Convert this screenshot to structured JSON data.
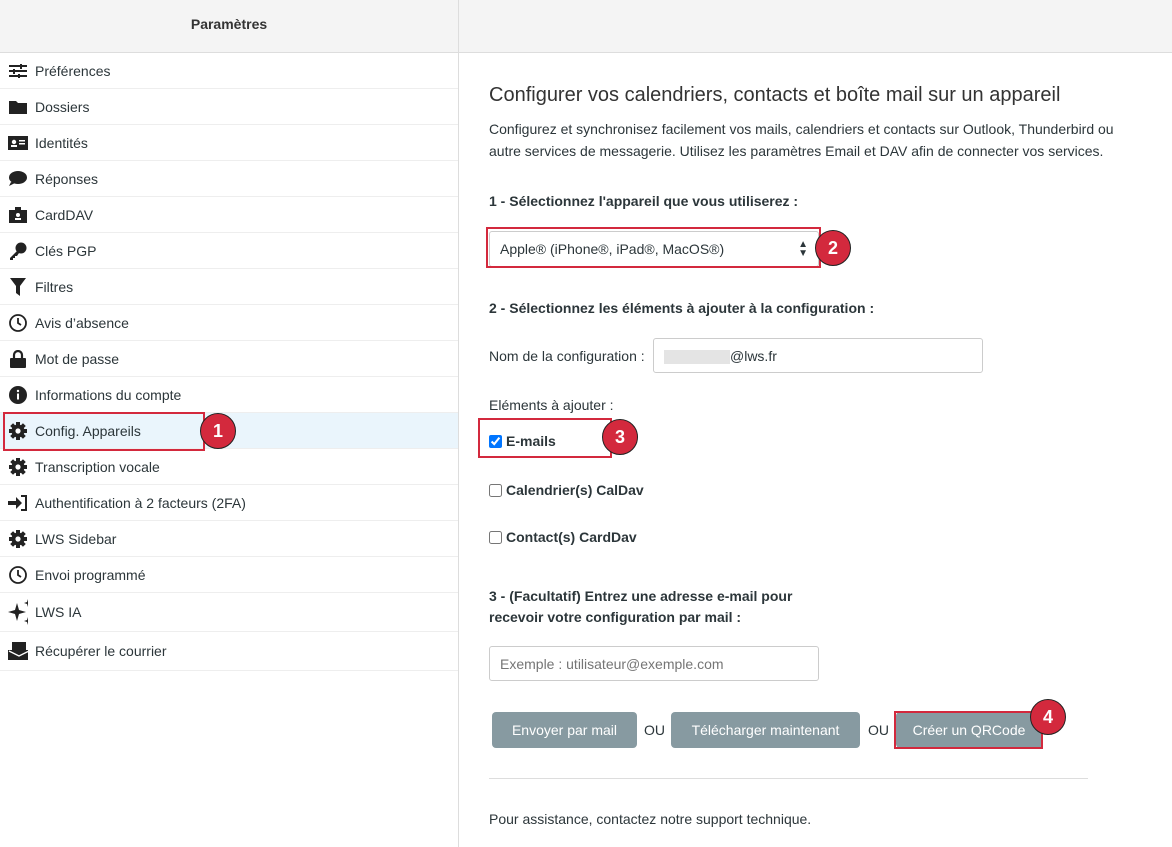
{
  "header": {
    "title": "Paramètres"
  },
  "sidebar": {
    "items": [
      {
        "label": "Préférences",
        "icon": "sliders-icon"
      },
      {
        "label": "Dossiers",
        "icon": "folder-icon"
      },
      {
        "label": "Identités",
        "icon": "id-card-icon"
      },
      {
        "label": "Réponses",
        "icon": "comment-icon"
      },
      {
        "label": "CardDAV",
        "icon": "contact-card-icon"
      },
      {
        "label": "Clés PGP",
        "icon": "key-icon"
      },
      {
        "label": "Filtres",
        "icon": "filter-icon"
      },
      {
        "label": "Avis d’absence",
        "icon": "clock-icon"
      },
      {
        "label": "Mot de passe",
        "icon": "lock-icon"
      },
      {
        "label": "Informations du compte",
        "icon": "info-icon"
      },
      {
        "label": "Config. Appareils",
        "icon": "gear-icon",
        "selected": true
      },
      {
        "label": "Transcription vocale",
        "icon": "gear-icon"
      },
      {
        "label": "Authentification à 2 facteurs (2FA)",
        "icon": "sign-in-icon"
      },
      {
        "label": "LWS Sidebar",
        "icon": "gear-icon"
      },
      {
        "label": "Envoi programmé",
        "icon": "clock-icon"
      },
      {
        "label": "LWS IA",
        "icon": "sparkles-icon"
      },
      {
        "label": "Récupérer le courrier",
        "icon": "mail-fetch-icon"
      }
    ]
  },
  "main": {
    "title": "Configurer vos calendriers, contacts et boîte mail sur un appareil",
    "description": "Configurez et synchronisez facilement vos mails, calendriers et contacts sur Outlook, Thunderbird ou autre services de messagerie. Utilisez les paramètres Email et DAV afin de connecter vos services.",
    "step1": "1 - Sélectionnez l'appareil que vous utiliserez :",
    "device_select": "Apple® (iPhone®, iPad®, MacOS®)",
    "step2": "2 - Sélectionnez les éléments à ajouter à la configuration :",
    "config_name_label": "Nom de la configuration :",
    "config_name_value": "@lws.fr",
    "elements_label": "Eléments à ajouter :",
    "checkboxes": [
      {
        "label": "E-mails",
        "checked": true
      },
      {
        "label": "Calendrier(s) CalDav",
        "checked": false
      },
      {
        "label": "Contact(s) CardDav",
        "checked": false
      }
    ],
    "step3": "3 - (Facultatif) Entrez une adresse e-mail pour recevoir votre configuration par mail :",
    "email_placeholder": "Exemple : utilisateur@exemple.com",
    "buttons": {
      "send": "Envoyer par mail",
      "download": "Télécharger maintenant",
      "qrcode": "Créer un QRCode",
      "or": "OU"
    },
    "support": "Pour assistance, contactez notre support technique."
  },
  "annotations": [
    "1",
    "2",
    "3",
    "4"
  ],
  "colors": {
    "annotation": "#d3293d",
    "button": "#879aa1",
    "selected_bg": "#eaf5fc"
  }
}
